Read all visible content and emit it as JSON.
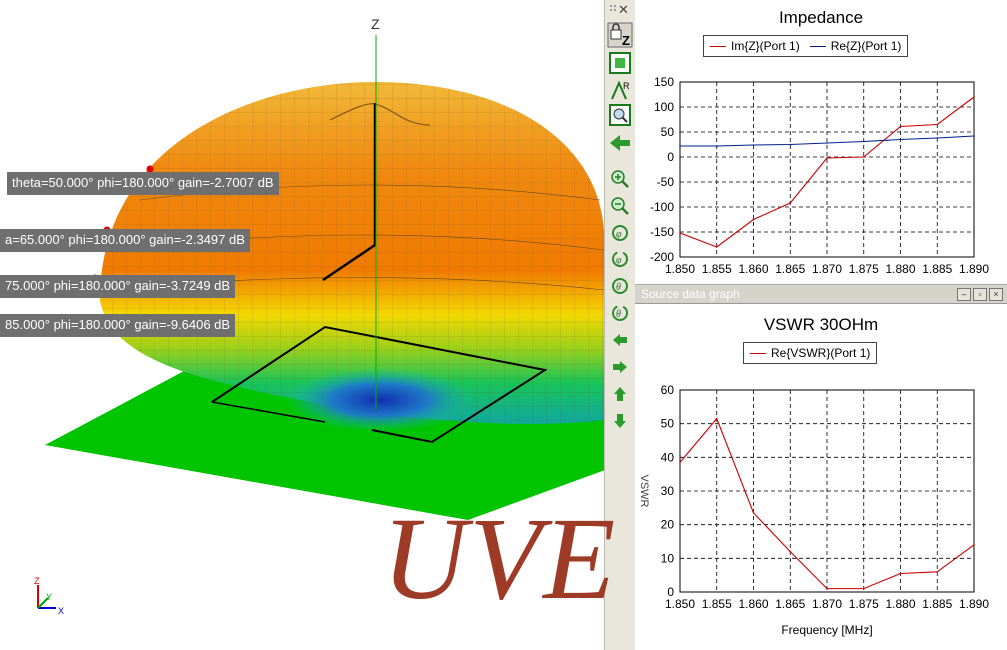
{
  "view3d": {
    "axis_label": "Z",
    "mini_axes": {
      "z": "Z",
      "y": "Y",
      "x": "X"
    },
    "probe_labels": [
      "theta=50.000° phi=180.000° gain=-2.7007 dB",
      "a=65.000° phi=180.000° gain=-2.3497 dB",
      "75.000° phi=180.000° gain=-3.7249 dB",
      "85.000° phi=180.000° gain=-9.6406 dB"
    ],
    "colors": {
      "ground": "#00c000",
      "pattern_top": "#f08000",
      "pattern_mid": "#f0d000",
      "pattern_low": "#20c040",
      "pattern_null": "#1040c0"
    }
  },
  "toolbar": {
    "icons": [
      "lock-z-icon",
      "fit-view-icon",
      "axis-r-icon",
      "zoom-window-icon",
      "back-arrow-icon",
      "zoom-in-icon",
      "zoom-out-icon",
      "rotate-phi-cw-icon",
      "rotate-phi-ccw-icon",
      "rotate-theta-cw-icon",
      "rotate-theta-ccw-icon",
      "pan-left-icon",
      "pan-right-icon",
      "pan-up-icon",
      "pan-down-icon"
    ]
  },
  "subwindow": {
    "title": "Source data graph"
  },
  "watermark": "UVE",
  "chart_data": [
    {
      "type": "line",
      "title": "Impedance",
      "x": [
        1.85,
        1.855,
        1.86,
        1.865,
        1.87,
        1.875,
        1.88,
        1.885,
        1.89
      ],
      "x_ticks": [
        "1.850",
        "1.855",
        "1.860",
        "1.865",
        "1.870",
        "1.875",
        "1.880",
        "1.885",
        "1.890"
      ],
      "y_ticks": [
        "150",
        "100",
        "50",
        "0",
        "-50",
        "-100",
        "-150",
        "-200"
      ],
      "ylim": [
        -200,
        150
      ],
      "xlabel": "",
      "ylabel": "",
      "grid": true,
      "legend_position": "top",
      "series": [
        {
          "name": "Im{Z}(Port 1)",
          "color": "#cc0000",
          "values": [
            -152,
            -180,
            -125,
            -92,
            -2,
            0,
            61,
            65,
            120
          ]
        },
        {
          "name": "Re{Z}(Port 1)",
          "color": "#00208c",
          "values": [
            22,
            22,
            24,
            25,
            28,
            31,
            35,
            38,
            42
          ]
        }
      ]
    },
    {
      "type": "line",
      "title": "VSWR 30OHm",
      "x": [
        1.85,
        1.855,
        1.86,
        1.865,
        1.87,
        1.875,
        1.88,
        1.885,
        1.89
      ],
      "x_ticks": [
        "1.850",
        "1.855",
        "1.860",
        "1.865",
        "1.870",
        "1.875",
        "1.880",
        "1.885",
        "1.890"
      ],
      "y_ticks": [
        "60",
        "50",
        "40",
        "30",
        "20",
        "10",
        "0"
      ],
      "ylim": [
        0,
        60
      ],
      "xlabel": "Frequency [MHz]",
      "ylabel": "VSWR",
      "grid": true,
      "legend_position": "top",
      "series": [
        {
          "name": "Re{VSWR}(Port 1)",
          "color": "#cc0000",
          "values": [
            38.5,
            51.5,
            23.5,
            12,
            1,
            1,
            5.5,
            6,
            14
          ]
        }
      ]
    }
  ]
}
